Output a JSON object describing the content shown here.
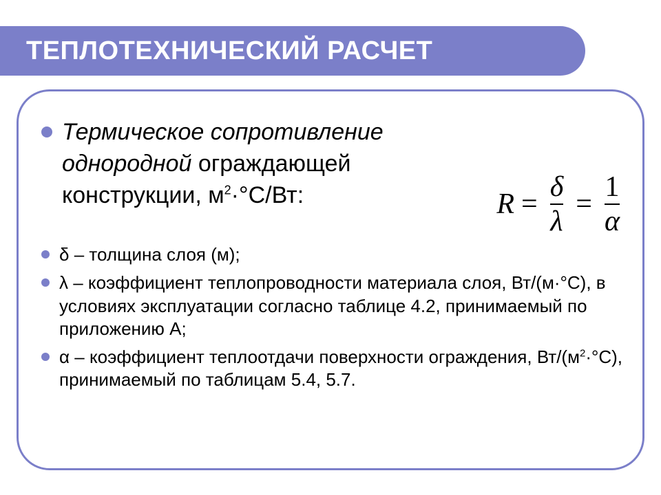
{
  "accent_color": "#7b7fc9",
  "title": "ТЕПЛОТЕХНИЧЕСКИЙ РАСЧЕТ",
  "lead": {
    "italic_part": "Термическое сопротивление однородной",
    "rest": " ограждающей конструкции, м",
    "sup": "2",
    "after_sup": "·°С/Вт:"
  },
  "formula": {
    "R": "R",
    "eq1": "=",
    "num1": "δ",
    "den1": "λ",
    "eq2": "=",
    "num2": "1",
    "den2": "α"
  },
  "defs": [
    {
      "text": "δ – толщина слоя (м);"
    },
    {
      "text_before": "λ – коэффициент теплопроводности материала слоя, Вт/(м·°С), в условиях эксплуатации согласно таблице 4.2, принимаемый по приложению А;"
    },
    {
      "text_before": "α – коэффициент теплоотдачи поверхности ограждения, Вт/(м",
      "sup": "2",
      "text_after": "·°С), принимаемый по таблицам 5.4, 5.7."
    }
  ]
}
